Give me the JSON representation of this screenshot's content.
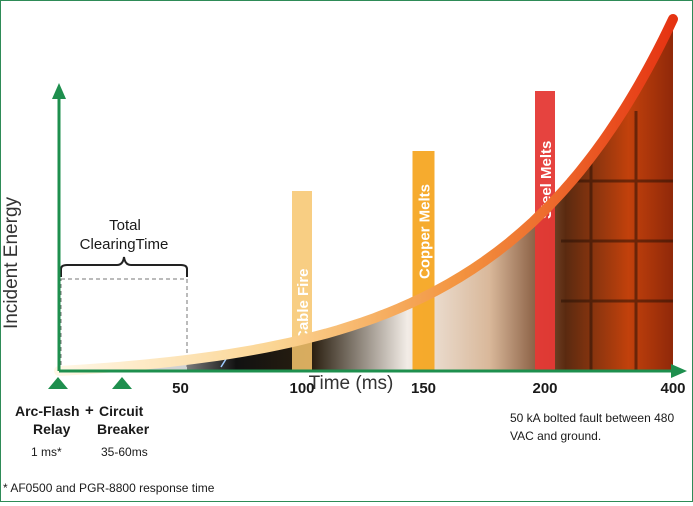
{
  "chart_data": {
    "type": "area",
    "xlabel": "Time (ms)",
    "ylabel": "Incident Energy",
    "x_ticks": [
      "50",
      "100",
      "150",
      "200",
      "400"
    ],
    "curve": {
      "description": "incident energy rises exponentially with time",
      "x": [
        0,
        50,
        100,
        150,
        200,
        300,
        400
      ],
      "y": [
        0,
        4,
        10,
        20,
        33,
        55,
        100
      ]
    },
    "annotations": [
      {
        "label": "Cable Fire",
        "x": 100,
        "color": "#f7c66d"
      },
      {
        "label": "Copper Melts",
        "x": 150,
        "color": "#f5a623"
      },
      {
        "label": "Steel Melts",
        "x": 200,
        "color": "#e53935"
      }
    ],
    "clearing_time": {
      "label_line1": "Total",
      "label_line2": "ClearingTime",
      "x_start": 1,
      "x_end": 50
    }
  },
  "devices": {
    "relay_line1": "Arc-Flash",
    "relay_line2": "Relay",
    "relay_time": "1 ms*",
    "plus": "+",
    "breaker_line1": "Circuit",
    "breaker_line2": "Breaker",
    "breaker_time": "35-60ms"
  },
  "note_fault": "50 kA bolted fault between 480 VAC and ground.",
  "footnote": "* AF0500 and PGR-8800 response time",
  "colors": {
    "axis": "#1e8f4e",
    "curve_start": "#fff3d6",
    "curve_end": "#e53312"
  }
}
